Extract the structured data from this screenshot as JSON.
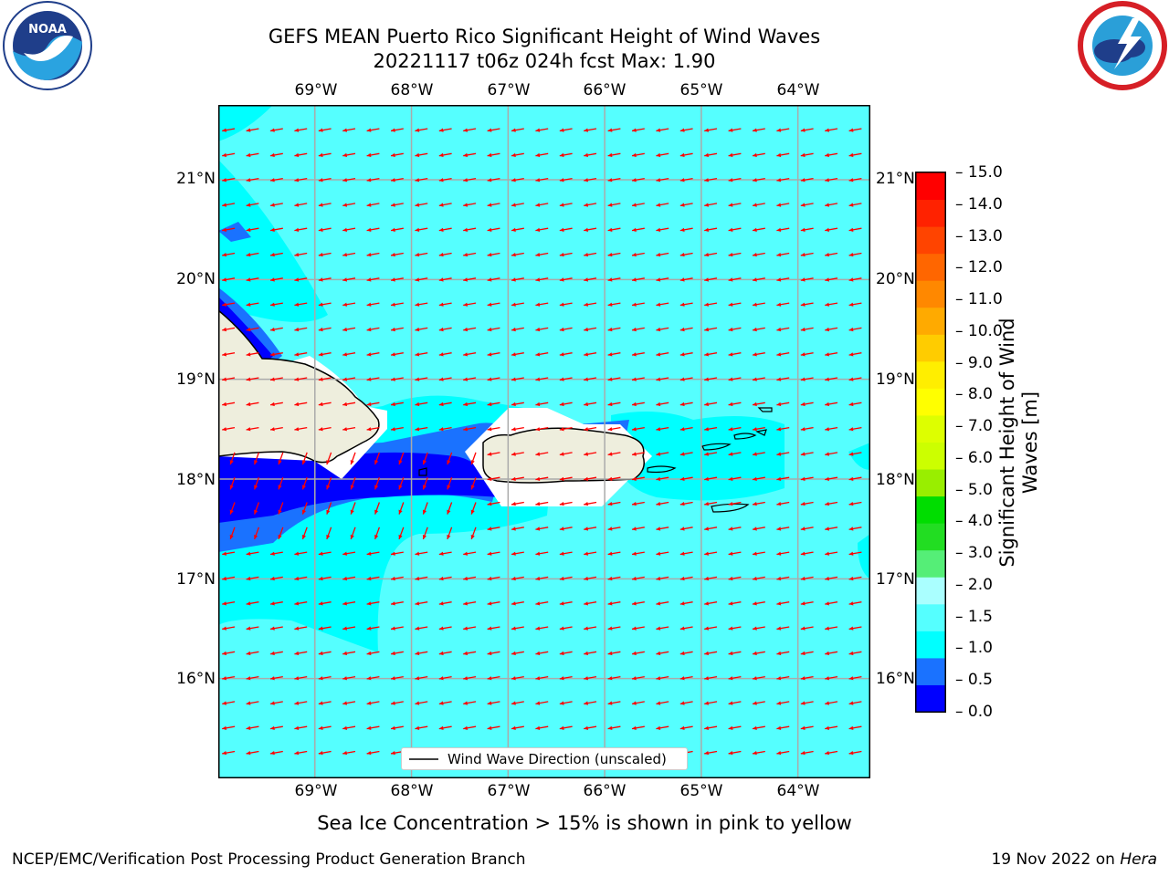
{
  "title_line1": "GEFS MEAN Puerto Rico Significant Height of Wind Waves",
  "title_line2": "20221117 t06z 024h fcst   Max: 1.90",
  "lon_ticks": [
    "69°W",
    "68°W",
    "67°W",
    "66°W",
    "65°W",
    "64°W"
  ],
  "lat_ticks": [
    "21°N",
    "20°N",
    "19°N",
    "18°N",
    "17°N",
    "16°N"
  ],
  "legend_label": "Wind Wave Direction (unscaled)",
  "caption": "Sea Ice Concentration > 15% is shown in pink to yellow",
  "footer_left": "NCEP/EMC/Verification Post Processing Product Generation Branch",
  "footer_right_prefix": "19 Nov 2022 on ",
  "footer_right_host": "Hera",
  "logo_left_text": "NOAA",
  "colorbar": {
    "label": "Significant Height of Wind Waves [m]",
    "tick_labels": [
      "15.0",
      "14.0",
      "13.0",
      "12.0",
      "11.0",
      "10.0",
      "9.0",
      "8.0",
      "7.0",
      "6.0",
      "5.0",
      "4.0",
      "3.0",
      "2.0",
      "1.5",
      "1.0",
      "0.5",
      "0.0"
    ],
    "colors": [
      "#0000ff",
      "#1a72ff",
      "#00ffff",
      "#55ffff",
      "#aaffff",
      "#55ee77",
      "#22dd22",
      "#00dd00",
      "#99ee00",
      "#ccff00",
      "#ddff00",
      "#ffff00",
      "#ffee00",
      "#ffcc00",
      "#ffaa00",
      "#ff8800",
      "#ff6600",
      "#ff4400",
      "#ff2200",
      "#ff0000"
    ]
  },
  "map": {
    "lon_range": [
      -70,
      -63.25
    ],
    "lat_range": [
      15.0,
      21.75
    ],
    "ocean_color": "#55ffff",
    "land_color": "#eeeedd"
  },
  "colors": {
    "vector": "#ff0000"
  }
}
